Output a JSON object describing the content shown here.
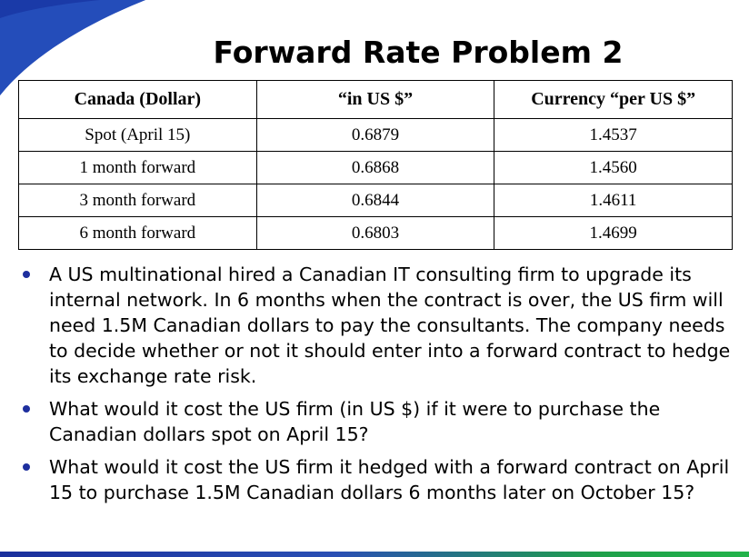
{
  "title": "Forward Rate Problem 2",
  "table": {
    "headers": [
      "Canada (Dollar)",
      "“in US $”",
      "Currency “per US $”"
    ],
    "rows": [
      [
        "Spot (April 15)",
        "0.6879",
        "1.4537"
      ],
      [
        "1 month forward",
        "0.6868",
        "1.4560"
      ],
      [
        "3 month forward",
        "0.6844",
        "1.4611"
      ],
      [
        "6 month forward",
        "0.6803",
        "1.4699"
      ]
    ]
  },
  "bullets": [
    "A US multinational hired a Canadian IT consulting firm to upgrade its internal network.  In 6 months when the contract is over, the US firm will need 1.5M Canadian dollars to pay the consultants.  The company needs to decide whether or not it should enter into a forward contract to hedge its exchange rate risk.",
    "What would it cost the US firm (in US $) if it were to purchase the Canadian dollars spot on April 15?",
    "What would it cost the US firm it hedged with a forward contract on April 15 to purchase 1.5M Canadian dollars 6 months later on October 15?"
  ],
  "colors": {
    "accent_blue": "#1e2f9e",
    "accent_green": "#22b34a"
  }
}
